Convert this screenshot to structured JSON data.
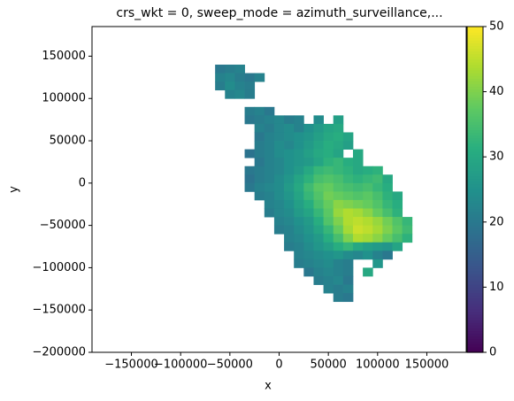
{
  "chart_data": {
    "type": "heatmap",
    "title": "crs_wkt = 0, sweep_mode = azimuth_surveillance,...",
    "x_label": "x",
    "y_label": "y",
    "cmap": "viridis",
    "xlim": [
      -190000,
      190000
    ],
    "ylim": [
      -200000,
      185000
    ],
    "xticks": [
      {
        "value": -150000,
        "label": "−150000"
      },
      {
        "value": -100000,
        "label": "−100000"
      },
      {
        "value": -50000,
        "label": "−50000"
      },
      0,
      50000,
      100000,
      150000
    ],
    "yticks": [
      {
        "value": -200000,
        "label": "−200000"
      },
      {
        "value": -150000,
        "label": "−150000"
      },
      {
        "value": -100000,
        "label": "−100000"
      },
      {
        "value": -50000,
        "label": "−50000"
      },
      0,
      50000,
      100000,
      150000
    ],
    "clim": [
      0,
      50
    ],
    "cticks": [
      0,
      10,
      20,
      30,
      40,
      50
    ],
    "x": [
      -60000,
      -50000,
      -40000,
      -30000,
      -20000,
      -10000,
      0,
      10000,
      20000,
      30000,
      40000,
      50000,
      60000,
      70000,
      80000,
      90000,
      100000,
      110000,
      120000,
      130000
    ],
    "y": [
      135000,
      125000,
      115000,
      105000,
      95000,
      85000,
      75000,
      65000,
      55000,
      45000,
      35000,
      25000,
      15000,
      5000,
      -5000,
      -15000,
      -25000,
      -35000,
      -45000,
      -55000,
      -65000,
      -75000,
      -85000,
      -95000,
      -105000,
      -115000,
      -125000,
      -135000
    ],
    "values": [
      [
        20,
        21,
        22,
        null,
        null,
        null,
        null,
        null,
        null,
        null,
        null,
        null,
        null,
        null,
        null,
        null,
        null,
        null,
        null,
        null
      ],
      [
        22,
        23,
        21,
        20,
        22,
        null,
        null,
        null,
        null,
        null,
        null,
        null,
        null,
        null,
        null,
        null,
        null,
        null,
        null,
        null
      ],
      [
        21,
        24,
        22,
        21,
        null,
        null,
        null,
        null,
        null,
        null,
        null,
        null,
        null,
        null,
        null,
        null,
        null,
        null,
        null,
        null
      ],
      [
        null,
        22,
        23,
        21,
        null,
        null,
        null,
        null,
        null,
        null,
        null,
        null,
        null,
        null,
        null,
        null,
        null,
        null,
        null,
        null
      ],
      [
        null,
        null,
        null,
        null,
        null,
        null,
        null,
        null,
        null,
        null,
        null,
        null,
        null,
        null,
        null,
        null,
        null,
        null,
        null,
        null
      ],
      [
        null,
        null,
        null,
        21,
        22,
        20,
        null,
        null,
        null,
        null,
        null,
        null,
        null,
        null,
        null,
        null,
        null,
        null,
        null,
        null
      ],
      [
        null,
        null,
        null,
        20,
        21,
        22,
        23,
        21,
        22,
        null,
        24,
        null,
        28,
        null,
        null,
        null,
        null,
        null,
        null,
        null
      ],
      [
        null,
        null,
        null,
        null,
        22,
        21,
        23,
        24,
        22,
        25,
        27,
        29,
        30,
        null,
        null,
        null,
        null,
        null,
        null,
        null
      ],
      [
        null,
        null,
        null,
        null,
        20,
        22,
        23,
        24,
        25,
        26,
        28,
        30,
        31,
        29,
        null,
        null,
        null,
        null,
        null,
        null
      ],
      [
        null,
        null,
        null,
        null,
        21,
        22,
        24,
        23,
        25,
        27,
        29,
        31,
        30,
        28,
        null,
        null,
        null,
        null,
        null,
        null
      ],
      [
        null,
        null,
        null,
        19,
        21,
        22,
        24,
        25,
        26,
        28,
        30,
        31,
        29,
        null,
        30,
        null,
        null,
        null,
        null,
        null
      ],
      [
        null,
        null,
        null,
        null,
        20,
        22,
        23,
        25,
        26,
        27,
        29,
        32,
        33,
        31,
        30,
        null,
        null,
        null,
        null,
        null
      ],
      [
        null,
        null,
        null,
        20,
        21,
        22,
        23,
        25,
        27,
        30,
        33,
        34,
        33,
        32,
        30,
        31,
        32,
        null,
        null,
        null
      ],
      [
        null,
        null,
        null,
        19,
        21,
        22,
        24,
        26,
        29,
        32,
        35,
        36,
        35,
        33,
        32,
        33,
        34,
        30,
        null,
        null
      ],
      [
        null,
        null,
        null,
        20,
        22,
        23,
        24,
        27,
        30,
        34,
        37,
        38,
        36,
        35,
        34,
        35,
        33,
        31,
        null,
        null
      ],
      [
        null,
        null,
        null,
        null,
        21,
        22,
        24,
        26,
        29,
        33,
        36,
        39,
        38,
        37,
        36,
        37,
        35,
        32,
        30,
        null
      ],
      [
        null,
        null,
        null,
        null,
        null,
        22,
        23,
        25,
        28,
        31,
        35,
        38,
        41,
        40,
        39,
        38,
        36,
        33,
        31,
        null
      ],
      [
        null,
        null,
        null,
        null,
        null,
        21,
        23,
        24,
        27,
        29,
        33,
        37,
        42,
        44,
        43,
        41,
        38,
        35,
        32,
        null
      ],
      [
        null,
        null,
        null,
        null,
        null,
        null,
        22,
        23,
        25,
        27,
        31,
        36,
        40,
        44,
        45,
        44,
        42,
        39,
        36,
        33
      ],
      [
        null,
        null,
        null,
        null,
        null,
        null,
        21,
        22,
        24,
        26,
        29,
        33,
        38,
        43,
        46,
        45,
        43,
        40,
        37,
        34
      ],
      [
        null,
        null,
        null,
        null,
        null,
        null,
        null,
        22,
        23,
        25,
        27,
        31,
        35,
        40,
        44,
        43,
        41,
        38,
        35,
        32
      ],
      [
        null,
        null,
        null,
        null,
        null,
        null,
        null,
        21,
        22,
        24,
        26,
        28,
        31,
        33,
        30,
        28,
        27,
        26,
        29,
        null
      ],
      [
        null,
        null,
        null,
        null,
        null,
        null,
        null,
        null,
        22,
        23,
        24,
        25,
        26,
        24,
        23,
        25,
        22,
        20,
        null,
        null
      ],
      [
        null,
        null,
        null,
        null,
        null,
        null,
        null,
        null,
        21,
        22,
        23,
        24,
        22,
        21,
        null,
        null,
        26,
        null,
        null,
        null
      ],
      [
        null,
        null,
        null,
        null,
        null,
        null,
        null,
        null,
        null,
        20,
        22,
        23,
        22,
        21,
        null,
        30,
        null,
        null,
        null,
        null
      ],
      [
        null,
        null,
        null,
        null,
        null,
        null,
        null,
        null,
        null,
        null,
        21,
        22,
        23,
        20,
        null,
        null,
        null,
        null,
        null,
        null
      ],
      [
        null,
        null,
        null,
        null,
        null,
        null,
        null,
        null,
        null,
        null,
        null,
        22,
        21,
        22,
        null,
        null,
        null,
        null,
        null,
        null
      ],
      [
        null,
        null,
        null,
        null,
        null,
        null,
        null,
        null,
        null,
        null,
        null,
        null,
        21,
        20,
        null,
        null,
        null,
        null,
        null,
        null
      ]
    ]
  }
}
